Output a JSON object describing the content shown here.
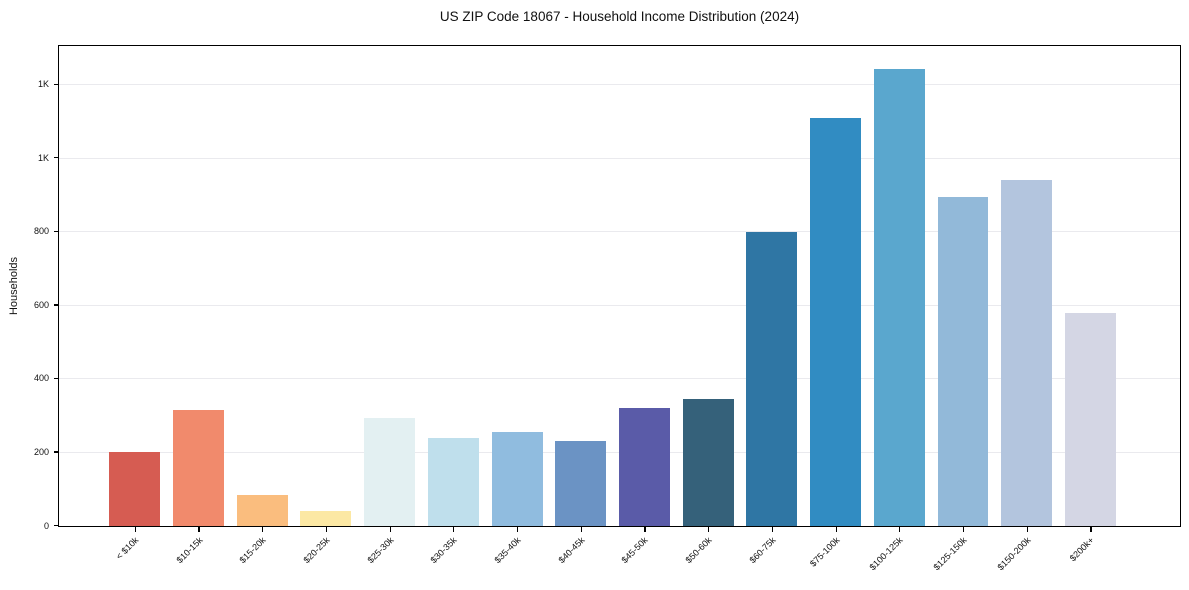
{
  "figure": {
    "background": "#ffffff",
    "plot_border_color": "#000000",
    "grid_color": "#eaeaee"
  },
  "chart_data": {
    "type": "bar",
    "title": "US ZIP Code 18067 - Household Income Distribution (2024)",
    "xlabel": "",
    "ylabel": "Households",
    "categories": [
      "< $10k",
      "$10-15k",
      "$15-20k",
      "$20-25k",
      "$25-30k",
      "$30-35k",
      "$35-40k",
      "$40-45k",
      "$45-50k",
      "$50-60k",
      "$60-75k",
      "$75-100k",
      "$100-125k",
      "$125-150k",
      "$150-200k",
      "$200k+"
    ],
    "values": [
      200,
      315,
      85,
      40,
      295,
      240,
      255,
      230,
      320,
      345,
      800,
      1110,
      1243,
      895,
      940,
      580
    ],
    "bar_colors": [
      "#d65c52",
      "#f18a6c",
      "#fabd7e",
      "#fce8a4",
      "#e3f0f2",
      "#bfdfec",
      "#90bcdf",
      "#6b93c4",
      "#5a5ba8",
      "#35617a",
      "#2f76a4",
      "#318cc2",
      "#5aa7ce",
      "#92b9d9",
      "#b3c5de",
      "#d4d6e4"
    ],
    "ylim": [
      0,
      1303
    ],
    "yticks": [
      {
        "value": 0,
        "label": "0"
      },
      {
        "value": 200,
        "label": "200"
      },
      {
        "value": 400,
        "label": "400"
      },
      {
        "value": 600,
        "label": "600"
      },
      {
        "value": 800,
        "label": "800"
      },
      {
        "value": 1000,
        "label": "1K"
      },
      {
        "value": 1200,
        "label": "1K"
      }
    ],
    "grid": true,
    "legend": "none",
    "x_tick_rotation_deg": 45
  }
}
